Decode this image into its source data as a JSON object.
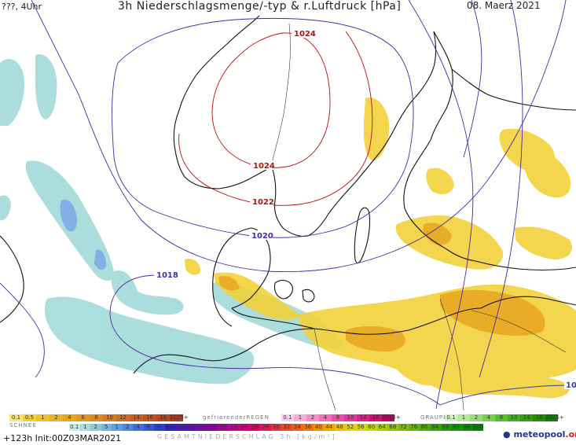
{
  "header": {
    "left_label": "???, 4Uhr",
    "title": "3h Niederschlagsmenge/-typ & r.Luftdruck [hPa]",
    "date": "08. Maerz 2021"
  },
  "isobars": [
    {
      "label": "1024",
      "color": "#b01010"
    },
    {
      "label": "1024",
      "color": "#b01010"
    },
    {
      "label": "1022",
      "color": "#b01010"
    },
    {
      "label": "1020",
      "color": "#4a2aa0"
    },
    {
      "label": "1018",
      "color": "#4a2aa0"
    },
    {
      "label": "10",
      "color": "#3a3aa0"
    }
  ],
  "legend": {
    "rain": {
      "label": "",
      "values": [
        "0.1",
        "0.5",
        "1",
        "2",
        "4",
        "6",
        "8",
        "10",
        "12",
        "14",
        "16",
        "18",
        "2025+"
      ]
    },
    "freezing": {
      "label": "gefrierenderREGEN",
      "values": [
        "0.1",
        "1",
        "2",
        "4",
        "8",
        "10",
        "14",
        "16",
        "2025+"
      ]
    },
    "graupel": {
      "label": "GRAUPEL",
      "values": [
        "0.1",
        "1",
        "2",
        "4",
        "8",
        "10",
        "14",
        "16",
        "2025+"
      ]
    },
    "snow": {
      "label": "SCHNEE",
      "values": [
        "0.1",
        "1",
        "2",
        "5",
        "1",
        "2",
        "4",
        "6",
        "8",
        "10",
        "12",
        "14",
        "16",
        "18",
        "20",
        "22",
        "24",
        "26",
        "28",
        "30",
        "32",
        "34",
        "36",
        "40",
        "44",
        "48",
        "52",
        "56",
        "60",
        "64",
        "68",
        "72",
        "76",
        "80",
        "84",
        "88",
        "92",
        "96",
        "100"
      ]
    },
    "total_label": "GESAMTNIEDERSCHLAG 3h [kg/m²]"
  },
  "footer": {
    "run_info": "+123h Init:00Z03MAR2021",
    "logo_main": "meteopool",
    "logo_suffix": ".org"
  },
  "colors": {
    "rain_yellow": "#f2d23a",
    "rain_orange": "#e8a520",
    "snow_cyan": "#a8dcdc",
    "snow_blue": "#7aa8e8",
    "coastline": "#111111",
    "isobar_high": "#b01010",
    "isobar_low": "#4a2aa0"
  }
}
